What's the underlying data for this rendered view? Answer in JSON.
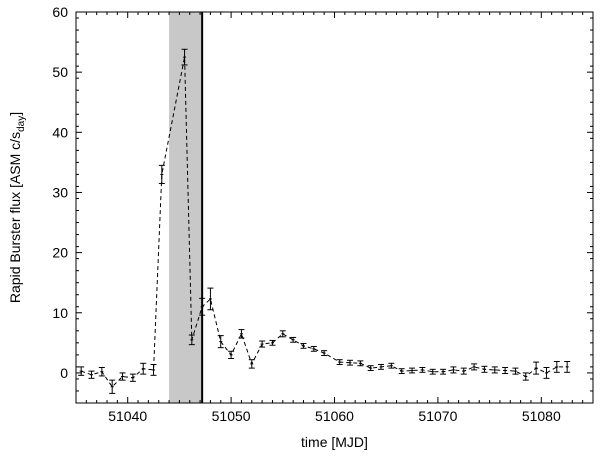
{
  "chart_data": {
    "type": "line",
    "xlabel": "time [MJD]",
    "ylabel_main": "Rapid Burster flux [ASM c/s",
    "ylabel_sub": "day",
    "ylabel_end": "]",
    "xlim": [
      51035,
      51085
    ],
    "ylim": [
      -5,
      60
    ],
    "xticks": [
      51040,
      51050,
      51060,
      51070,
      51080
    ],
    "yticks": [
      0,
      10,
      20,
      30,
      40,
      50,
      60
    ],
    "grid": false,
    "line_style": "dashed",
    "shaded_region": [
      51044,
      51047.2
    ],
    "vertical_line": 51047.2,
    "series": [
      {
        "points": [
          {
            "x": 51035.5,
            "y": 0.3,
            "err": 0.7
          },
          {
            "x": 51036.5,
            "y": -0.3,
            "err": 0.6
          },
          {
            "x": 51037.5,
            "y": 0.2,
            "err": 0.7
          },
          {
            "x": 51038.5,
            "y": -2.3,
            "err": 1.1
          },
          {
            "x": 51039.5,
            "y": -0.6,
            "err": 0.6
          },
          {
            "x": 51040.5,
            "y": -0.8,
            "err": 0.6
          },
          {
            "x": 51041.5,
            "y": 0.7,
            "err": 0.9
          },
          {
            "x": 51042.5,
            "y": 0.5,
            "err": 0.9
          },
          {
            "x": 51043.3,
            "y": 33.0,
            "err": 1.5
          },
          {
            "x": 51045.5,
            "y": 52.5,
            "err": 1.3
          },
          {
            "x": 51046.2,
            "y": 5.5,
            "err": 0.8
          },
          {
            "x": 51047.2,
            "y": 11.0,
            "err": 1.4
          },
          {
            "x": 51048.0,
            "y": 12.3,
            "err": 1.8
          },
          {
            "x": 51049.0,
            "y": 5.2,
            "err": 1.0
          },
          {
            "x": 51050.0,
            "y": 3.0,
            "err": 0.6
          },
          {
            "x": 51051.0,
            "y": 6.5,
            "err": 0.7
          },
          {
            "x": 51052.0,
            "y": 1.5,
            "err": 0.7
          },
          {
            "x": 51053.0,
            "y": 4.8,
            "err": 0.5
          },
          {
            "x": 51054.0,
            "y": 5.0,
            "err": 0.4
          },
          {
            "x": 51055.0,
            "y": 6.5,
            "err": 0.5
          },
          {
            "x": 51056.0,
            "y": 5.5,
            "err": 0.4
          },
          {
            "x": 51057.0,
            "y": 4.5,
            "err": 0.4
          },
          {
            "x": 51058.0,
            "y": 4.0,
            "err": 0.4
          },
          {
            "x": 51059.0,
            "y": 3.3,
            "err": 0.4
          },
          {
            "x": 51060.5,
            "y": 1.8,
            "err": 0.4
          },
          {
            "x": 51061.5,
            "y": 1.7,
            "err": 0.4
          },
          {
            "x": 51062.5,
            "y": 1.6,
            "err": 0.4
          },
          {
            "x": 51063.5,
            "y": 0.8,
            "err": 0.4
          },
          {
            "x": 51064.5,
            "y": 1.0,
            "err": 0.4
          },
          {
            "x": 51065.5,
            "y": 1.2,
            "err": 0.4
          },
          {
            "x": 51066.5,
            "y": 0.3,
            "err": 0.4
          },
          {
            "x": 51067.5,
            "y": 0.4,
            "err": 0.4
          },
          {
            "x": 51068.5,
            "y": 0.5,
            "err": 0.4
          },
          {
            "x": 51069.5,
            "y": 0.2,
            "err": 0.4
          },
          {
            "x": 51070.5,
            "y": 0.2,
            "err": 0.4
          },
          {
            "x": 51071.5,
            "y": 0.5,
            "err": 0.5
          },
          {
            "x": 51072.5,
            "y": 0.3,
            "err": 0.5
          },
          {
            "x": 51073.5,
            "y": 1.0,
            "err": 0.5
          },
          {
            "x": 51074.5,
            "y": 0.6,
            "err": 0.5
          },
          {
            "x": 51075.5,
            "y": 0.5,
            "err": 0.5
          },
          {
            "x": 51076.5,
            "y": 0.4,
            "err": 0.5
          },
          {
            "x": 51077.5,
            "y": 0.3,
            "err": 0.5
          },
          {
            "x": 51078.5,
            "y": -0.6,
            "err": 0.6
          },
          {
            "x": 51079.5,
            "y": 0.8,
            "err": 1.0
          },
          {
            "x": 51080.5,
            "y": 0.0,
            "err": 0.9
          },
          {
            "x": 51081.5,
            "y": 1.0,
            "err": 0.9
          },
          {
            "x": 51082.5,
            "y": 1.0,
            "err": 0.9
          }
        ]
      }
    ]
  }
}
